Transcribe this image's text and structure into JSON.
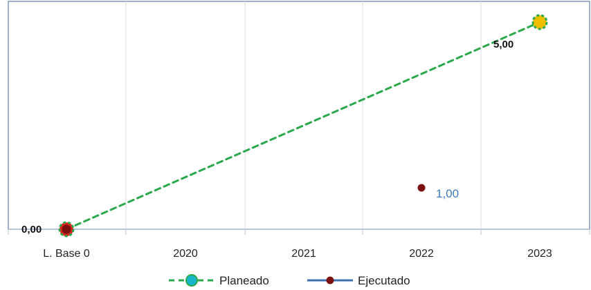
{
  "chart_data": {
    "type": "line",
    "title": "",
    "xlabel": "",
    "ylabel": "",
    "categories": [
      "L. Base 0",
      "2020",
      "2021",
      "2022",
      "2023"
    ],
    "ylim": [
      0,
      5.5
    ],
    "grid": "vertical",
    "legend_position": "bottom",
    "series": [
      {
        "name": "Planeado",
        "style": "dashed",
        "color": "#2aa84a",
        "marker_color": "#19b6c9",
        "points": [
          {
            "category": "L. Base 0",
            "value": 0,
            "label": "0,00"
          },
          {
            "category": "2023",
            "value": 5,
            "label": "5,00"
          }
        ]
      },
      {
        "name": "Ejecutado",
        "style": "solid",
        "color": "#3d6fb5",
        "marker_color": "#7a1010",
        "points": [
          {
            "category": "L. Base 0",
            "value": 0,
            "label": ""
          },
          {
            "category": "2022",
            "value": 1,
            "label": "1,00"
          }
        ]
      }
    ],
    "colors": {
      "planeado_line": "#2aa84a",
      "planeado_marker": "#19b6c9",
      "ejecutado_line": "#3d6fb5",
      "ejecutado_marker": "#7a1010",
      "baseline_marker": "#e02020",
      "final_marker": "#f0c000",
      "grid": "#d7dde6",
      "axis": "#7f96bf"
    }
  }
}
